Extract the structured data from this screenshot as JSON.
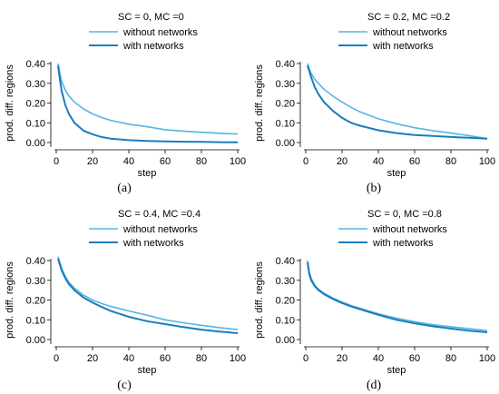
{
  "chart_data": [
    {
      "type": "line",
      "panel_label": "(a)",
      "legend_title": "SC = 0,  MC =0",
      "xlabel": "step",
      "ylabel": "prod. diff. regions",
      "xlim": [
        0,
        100
      ],
      "ylim": [
        0,
        0.4
      ],
      "xticks": [
        "0",
        "20",
        "40",
        "60",
        "80",
        "100"
      ],
      "yticks": [
        "0.00",
        "0.10",
        "0.20",
        "0.30",
        "0.40"
      ],
      "grid": false,
      "legend_position": "top-center",
      "x": [
        1,
        2,
        3,
        5,
        7,
        10,
        15,
        20,
        25,
        30,
        40,
        50,
        60,
        70,
        80,
        90,
        100
      ],
      "series": [
        {
          "name": "without networks",
          "color": "#56b6e0",
          "values": [
            0.4,
            0.35,
            0.31,
            0.265,
            0.235,
            0.205,
            0.17,
            0.145,
            0.127,
            0.112,
            0.093,
            0.08,
            0.065,
            0.058,
            0.052,
            0.047,
            0.043
          ]
        },
        {
          "name": "with networks",
          "color": "#1a7cbd",
          "values": [
            0.39,
            0.32,
            0.26,
            0.19,
            0.145,
            0.1,
            0.06,
            0.042,
            0.028,
            0.02,
            0.012,
            0.008,
            0.006,
            0.004,
            0.003,
            0.002,
            0.001
          ]
        }
      ]
    },
    {
      "type": "line",
      "panel_label": "(b)",
      "legend_title": "SC = 0.2,  MC =0.2",
      "xlabel": "step",
      "ylabel": "prod. diff. regions",
      "xlim": [
        0,
        100
      ],
      "ylim": [
        0,
        0.4
      ],
      "xticks": [
        "0",
        "20",
        "40",
        "60",
        "80",
        "100"
      ],
      "yticks": [
        "0.00",
        "0.10",
        "0.20",
        "0.30",
        "0.40"
      ],
      "grid": false,
      "legend_position": "top-right",
      "x": [
        1,
        2,
        3,
        5,
        7,
        10,
        15,
        20,
        25,
        30,
        40,
        50,
        60,
        70,
        80,
        90,
        100
      ],
      "series": [
        {
          "name": "without networks",
          "color": "#56b6e0",
          "values": [
            0.4,
            0.37,
            0.35,
            0.32,
            0.3,
            0.27,
            0.235,
            0.205,
            0.178,
            0.155,
            0.12,
            0.095,
            0.075,
            0.06,
            0.048,
            0.035,
            0.02
          ]
        },
        {
          "name": "with networks",
          "color": "#1a7cbd",
          "values": [
            0.39,
            0.36,
            0.33,
            0.28,
            0.245,
            0.205,
            0.16,
            0.125,
            0.1,
            0.085,
            0.062,
            0.048,
            0.038,
            0.033,
            0.028,
            0.024,
            0.02
          ]
        }
      ]
    },
    {
      "type": "line",
      "panel_label": "(c)",
      "legend_title": "SC = 0.4,  MC =0.4",
      "xlabel": "step",
      "ylabel": "prod. diff. regions",
      "xlim": [
        0,
        100
      ],
      "ylim": [
        0,
        0.4
      ],
      "xticks": [
        "0",
        "20",
        "40",
        "60",
        "80",
        "100"
      ],
      "yticks": [
        "0.00",
        "0.10",
        "0.20",
        "0.30",
        "0.40"
      ],
      "grid": false,
      "legend_position": "top-center",
      "x": [
        1,
        2,
        3,
        5,
        7,
        10,
        15,
        20,
        25,
        30,
        40,
        50,
        60,
        70,
        80,
        90,
        100
      ],
      "series": [
        {
          "name": "without networks",
          "color": "#56b6e0",
          "values": [
            0.42,
            0.39,
            0.36,
            0.32,
            0.29,
            0.26,
            0.225,
            0.2,
            0.182,
            0.168,
            0.145,
            0.123,
            0.1,
            0.085,
            0.072,
            0.06,
            0.05
          ]
        },
        {
          "name": "with networks",
          "color": "#1a7cbd",
          "values": [
            0.41,
            0.38,
            0.35,
            0.31,
            0.28,
            0.25,
            0.213,
            0.187,
            0.165,
            0.145,
            0.115,
            0.093,
            0.078,
            0.063,
            0.05,
            0.04,
            0.032
          ]
        }
      ]
    },
    {
      "type": "line",
      "panel_label": "(d)",
      "legend_title": "SC = 0,  MC =0.8",
      "xlabel": "step",
      "ylabel": "prod. diff. regions",
      "xlim": [
        0,
        100
      ],
      "ylim": [
        0,
        0.4
      ],
      "xticks": [
        "0",
        "20",
        "40",
        "60",
        "80",
        "100"
      ],
      "yticks": [
        "0.00",
        "0.10",
        "0.20",
        "0.30",
        "0.40"
      ],
      "grid": false,
      "legend_position": "top-center",
      "x": [
        1,
        2,
        3,
        5,
        7,
        10,
        15,
        20,
        25,
        30,
        40,
        50,
        60,
        70,
        80,
        90,
        100
      ],
      "series": [
        {
          "name": "without networks",
          "color": "#56b6e0",
          "values": [
            0.4,
            0.34,
            0.31,
            0.275,
            0.255,
            0.235,
            0.21,
            0.19,
            0.172,
            0.158,
            0.13,
            0.108,
            0.09,
            0.075,
            0.065,
            0.055,
            0.046
          ]
        },
        {
          "name": "with networks",
          "color": "#1a7cbd",
          "values": [
            0.39,
            0.33,
            0.3,
            0.27,
            0.25,
            0.23,
            0.205,
            0.185,
            0.168,
            0.153,
            0.125,
            0.1,
            0.082,
            0.067,
            0.055,
            0.045,
            0.037
          ]
        }
      ]
    }
  ]
}
